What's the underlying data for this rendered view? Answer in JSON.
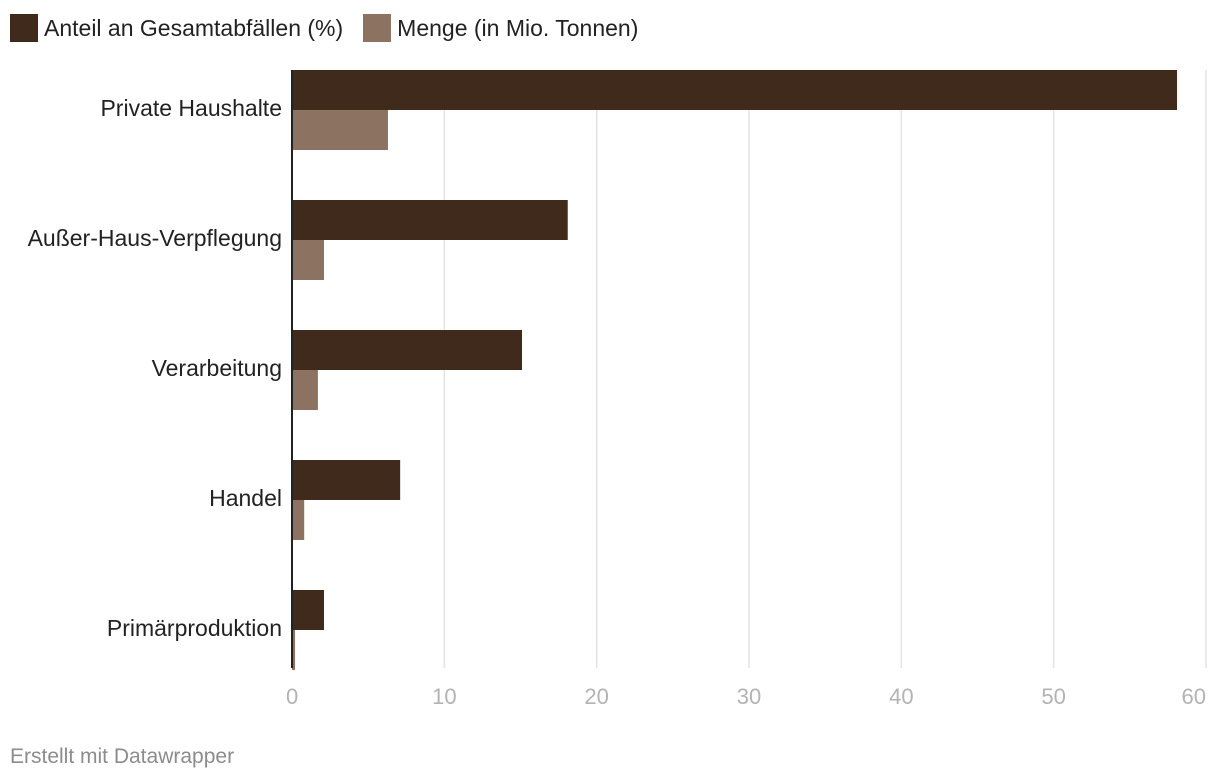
{
  "chart_data": {
    "type": "bar",
    "orientation": "horizontal",
    "categories": [
      "Private Haushalte",
      "Außer-Haus-Verpflegung",
      "Verarbeitung",
      "Handel",
      "Primärproduktion"
    ],
    "series": [
      {
        "name": "Anteil an Gesamtabfällen (%)",
        "color": "#3f2a1c",
        "values": [
          58.1,
          18.1,
          15.1,
          7.1,
          2.1
        ]
      },
      {
        "name": "Menge (in Mio. Tonnen)",
        "color": "#8c7261",
        "values": [
          6.3,
          2.1,
          1.7,
          0.8,
          0.2
        ]
      }
    ],
    "xlim": [
      0,
      60
    ],
    "xticks": [
      0,
      10,
      20,
      30,
      40,
      50,
      60
    ],
    "grid": true,
    "legend_position": "top-left"
  },
  "footer": {
    "credit": "Erstellt mit Datawrapper"
  }
}
